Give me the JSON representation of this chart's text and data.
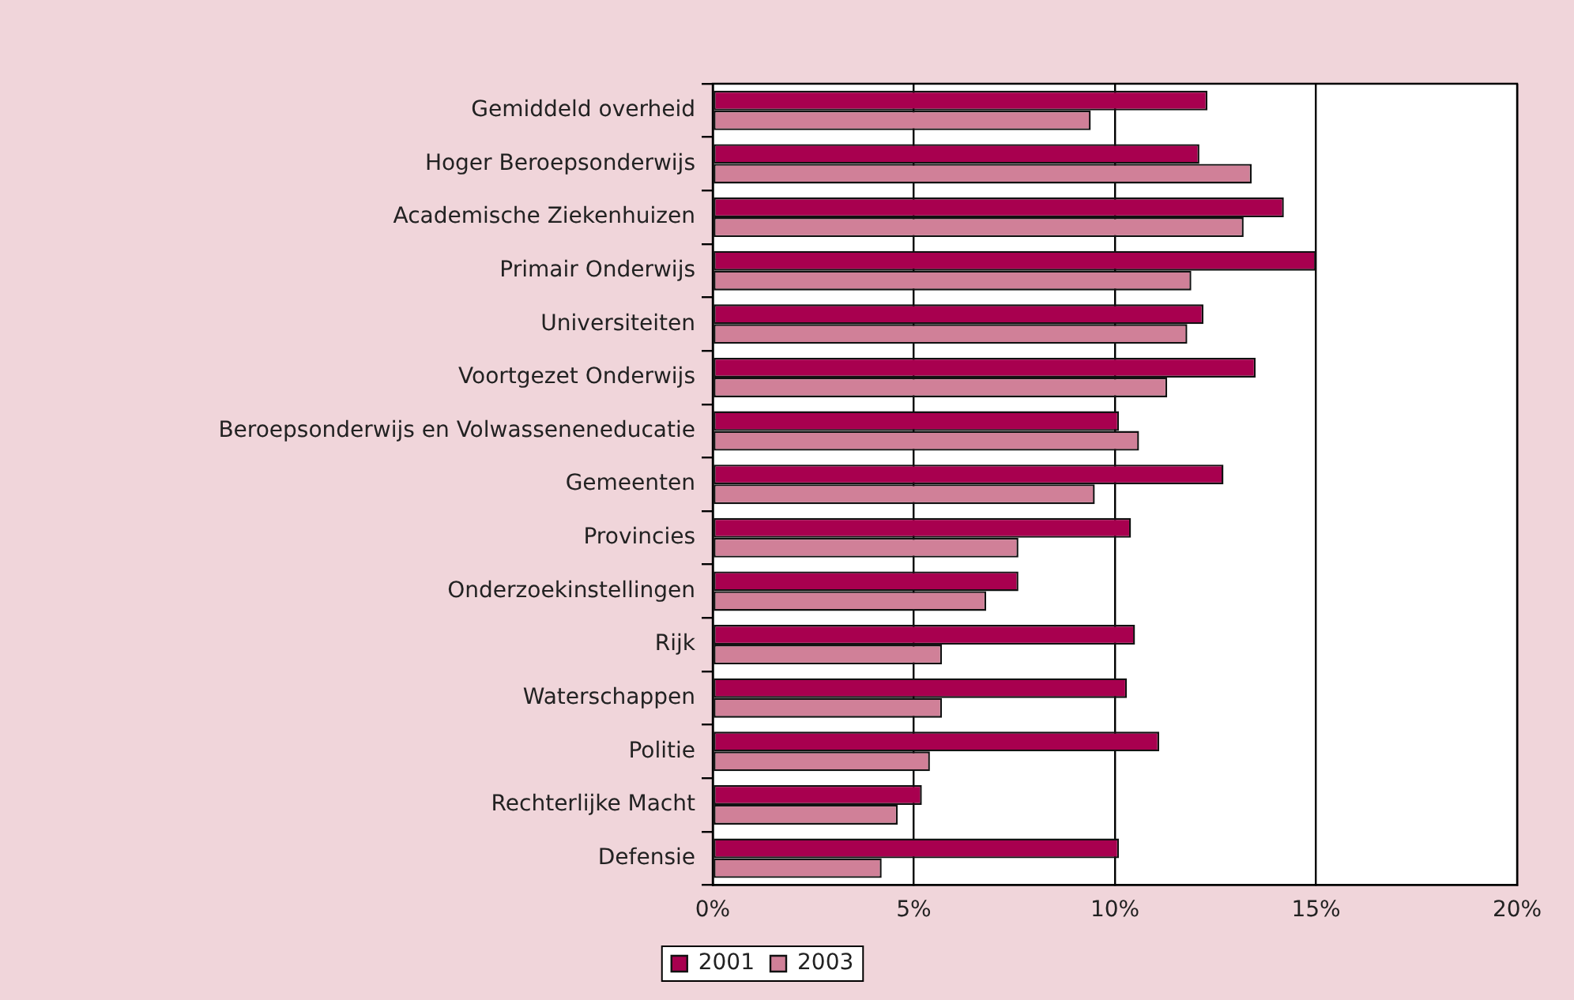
{
  "chart_data": {
    "type": "bar",
    "orientation": "horizontal",
    "categories": [
      "Gemiddeld overheid",
      "Hoger Beroepsonderwijs",
      "Academische Ziekenhuizen",
      "Primair Onderwijs",
      "Universiteiten",
      "Voortgezet Onderwijs",
      "Beroepsonderwijs en Volwasseneneducatie",
      "Gemeenten",
      "Provincies",
      "Onderzoekinstellingen",
      "Rijk",
      "Waterschappen",
      "Politie",
      "Rechterlijke Macht",
      "Defensie"
    ],
    "series": [
      {
        "name": "2001",
        "color": "#a8004f",
        "values": [
          12.3,
          12.1,
          14.2,
          15.0,
          12.2,
          13.5,
          10.1,
          12.7,
          10.4,
          7.6,
          10.5,
          10.3,
          11.1,
          5.2,
          10.1
        ]
      },
      {
        "name": "2003",
        "color": "#d08098",
        "values": [
          9.4,
          13.4,
          13.2,
          11.9,
          11.8,
          11.3,
          10.6,
          9.5,
          7.6,
          6.8,
          5.7,
          5.7,
          5.4,
          4.6,
          4.2
        ]
      }
    ],
    "xlim": [
      0,
      20
    ],
    "xticks": [
      {
        "value": 0,
        "label": "0%"
      },
      {
        "value": 5,
        "label": "5%"
      },
      {
        "value": 10,
        "label": "10%"
      },
      {
        "value": 15,
        "label": "15%"
      },
      {
        "value": 20,
        "label": "20%"
      }
    ],
    "grid": "x",
    "legend": "bottom"
  }
}
